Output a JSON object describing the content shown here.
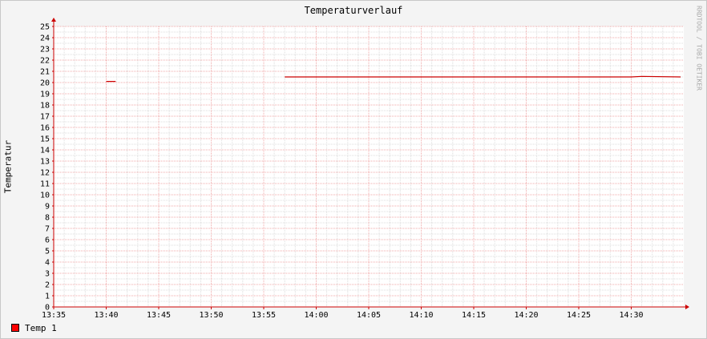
{
  "chart_data": {
    "type": "line",
    "title": "Temperaturverlauf",
    "ylabel": "Temperatur",
    "xlabel": "",
    "watermark": "RRDTOOL / TOBI OETIKER",
    "ylim": [
      0,
      25
    ],
    "xlim_minutes": [
      0,
      60
    ],
    "y_ticks": [
      0,
      1,
      2,
      3,
      4,
      5,
      6,
      7,
      8,
      9,
      10,
      11,
      12,
      13,
      14,
      15,
      16,
      17,
      18,
      19,
      20,
      21,
      22,
      23,
      24,
      25
    ],
    "x_ticks": [
      {
        "t": 0,
        "label": "13:35"
      },
      {
        "t": 5,
        "label": "13:40"
      },
      {
        "t": 10,
        "label": "13:45"
      },
      {
        "t": 15,
        "label": "13:50"
      },
      {
        "t": 20,
        "label": "13:55"
      },
      {
        "t": 25,
        "label": "14:00"
      },
      {
        "t": 30,
        "label": "14:05"
      },
      {
        "t": 35,
        "label": "14:10"
      },
      {
        "t": 40,
        "label": "14:15"
      },
      {
        "t": 45,
        "label": "14:20"
      },
      {
        "t": 50,
        "label": "14:25"
      },
      {
        "t": 55,
        "label": "14:30"
      }
    ],
    "grid": true,
    "series": [
      {
        "name": "Temp 1",
        "color": "#cc0000",
        "segments": [
          [
            [
              5.0,
              20.1
            ],
            [
              5.9,
              20.1
            ]
          ],
          [
            [
              22.0,
              20.5
            ],
            [
              55.0,
              20.5
            ],
            [
              56.0,
              20.55
            ],
            [
              59.7,
              20.5
            ]
          ]
        ]
      }
    ]
  },
  "legend": {
    "items": [
      {
        "label": "Temp 1",
        "color": "#ff0000"
      }
    ]
  }
}
